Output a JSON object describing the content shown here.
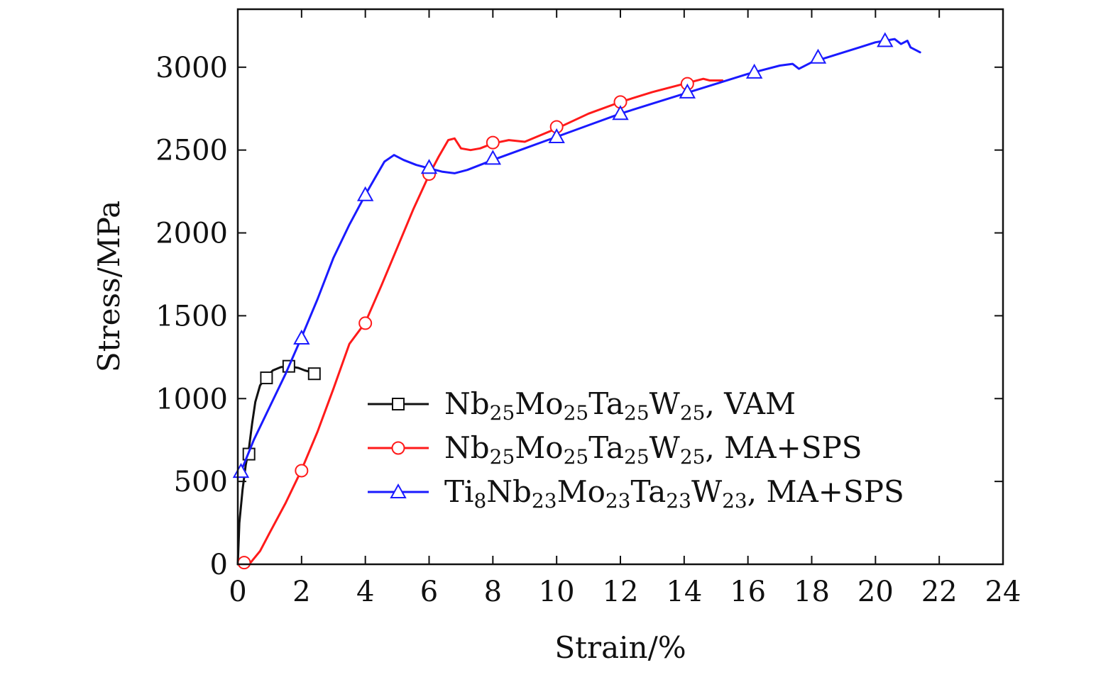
{
  "chart_data": {
    "type": "line",
    "title": "",
    "xlabel": "Strain/%",
    "ylabel": "Stress/MPa",
    "xlim": [
      0,
      24
    ],
    "ylim": [
      0,
      3350
    ],
    "xticks": [
      0,
      2,
      4,
      6,
      8,
      10,
      12,
      14,
      16,
      18,
      20,
      22,
      24
    ],
    "yticks": [
      0,
      500,
      1000,
      1500,
      2000,
      2500,
      3000
    ],
    "xtick_labels": [
      "0",
      "2",
      "4",
      "6",
      "8",
      "10",
      "12",
      "14",
      "16",
      "18",
      "20",
      "22",
      "24"
    ],
    "ytick_labels": [
      "0",
      "500",
      "1000",
      "1500",
      "2000",
      "2500",
      "3000"
    ],
    "grid": false,
    "legend_position": "center-right",
    "series": [
      {
        "name": "Nb25Mo25Ta25W25, VAM",
        "legend_parts": [
          {
            "text": "Nb",
            "sub": false
          },
          {
            "text": "25",
            "sub": true
          },
          {
            "text": "Mo",
            "sub": false
          },
          {
            "text": "25",
            "sub": true
          },
          {
            "text": "Ta",
            "sub": false
          },
          {
            "text": "25",
            "sub": true
          },
          {
            "text": "W",
            "sub": false
          },
          {
            "text": "25",
            "sub": true
          },
          {
            "text": ", VAM",
            "sub": false
          }
        ],
        "color": "#111111",
        "marker": "square",
        "x": [
          0,
          0.05,
          0.15,
          0.25,
          0.35,
          0.45,
          0.55,
          0.7,
          0.9,
          1.1,
          1.35,
          1.6,
          1.9,
          2.1,
          2.3,
          2.45
        ],
        "y": [
          0,
          250,
          450,
          600,
          700,
          850,
          980,
          1080,
          1130,
          1170,
          1190,
          1195,
          1185,
          1170,
          1160,
          1150
        ],
        "marker_x": [
          0.35,
          0.9,
          1.6,
          2.4
        ],
        "marker_y": [
          665,
          1125,
          1195,
          1150
        ]
      },
      {
        "name": "Nb25Mo25Ta25W25, MA+SPS",
        "legend_parts": [
          {
            "text": "Nb",
            "sub": false
          },
          {
            "text": "25",
            "sub": true
          },
          {
            "text": "Mo",
            "sub": false
          },
          {
            "text": "25",
            "sub": true
          },
          {
            "text": "Ta",
            "sub": false
          },
          {
            "text": "25",
            "sub": true
          },
          {
            "text": "W",
            "sub": false
          },
          {
            "text": "25",
            "sub": true
          },
          {
            "text": ", MA+SPS",
            "sub": false
          }
        ],
        "color": "#ff1a1a",
        "marker": "circle",
        "x": [
          0.2,
          0.4,
          0.7,
          1.0,
          1.5,
          2.0,
          2.5,
          3.0,
          3.5,
          4.0,
          4.5,
          5.0,
          5.5,
          6.0,
          6.3,
          6.6,
          6.8,
          7.0,
          7.3,
          7.6,
          8.0,
          8.5,
          9.0,
          9.5,
          10.0,
          11.0,
          12.0,
          13.0,
          14.0,
          14.6,
          14.8,
          15.2
        ],
        "y": [
          0,
          10,
          80,
          190,
          370,
          570,
          800,
          1060,
          1330,
          1460,
          1680,
          1910,
          2140,
          2350,
          2460,
          2560,
          2570,
          2510,
          2500,
          2510,
          2540,
          2560,
          2550,
          2590,
          2630,
          2720,
          2790,
          2850,
          2900,
          2930,
          2920,
          2920
        ],
        "marker_x": [
          0.2,
          2.0,
          4.0,
          6.0,
          8.0,
          10.0,
          12.0,
          14.1
        ],
        "marker_y": [
          10,
          565,
          1455,
          2355,
          2545,
          2640,
          2790,
          2900
        ]
      },
      {
        "name": "Ti8Nb23Mo23Ta23W23, MA+SPS",
        "legend_parts": [
          {
            "text": "Ti",
            "sub": false
          },
          {
            "text": "8",
            "sub": true
          },
          {
            "text": "Nb",
            "sub": false
          },
          {
            "text": "23",
            "sub": true
          },
          {
            "text": "Mo",
            "sub": false
          },
          {
            "text": "23",
            "sub": true
          },
          {
            "text": "Ta",
            "sub": false
          },
          {
            "text": "23",
            "sub": true
          },
          {
            "text": "W",
            "sub": false
          },
          {
            "text": "23",
            "sub": true
          },
          {
            "text": ", MA+SPS",
            "sub": false
          }
        ],
        "color": "#1a1aff",
        "marker": "triangle",
        "x": [
          0.1,
          0.5,
          1.0,
          1.5,
          2.0,
          2.5,
          3.0,
          3.5,
          4.0,
          4.3,
          4.6,
          4.9,
          5.2,
          5.6,
          6.0,
          6.4,
          6.8,
          7.2,
          8.0,
          9.0,
          10.0,
          11.0,
          12.0,
          13.0,
          14.0,
          15.0,
          16.0,
          17.0,
          17.4,
          17.6,
          18.0,
          18.5,
          19.0,
          19.5,
          20.0,
          20.3,
          20.6,
          20.8,
          21.0,
          21.1,
          21.3,
          21.4
        ],
        "y": [
          560,
          750,
          950,
          1150,
          1370,
          1600,
          1850,
          2050,
          2230,
          2330,
          2430,
          2470,
          2440,
          2410,
          2390,
          2370,
          2360,
          2380,
          2440,
          2510,
          2580,
          2650,
          2720,
          2780,
          2840,
          2900,
          2960,
          3010,
          3020,
          2990,
          3030,
          3060,
          3090,
          3120,
          3150,
          3160,
          3170,
          3140,
          3160,
          3120,
          3100,
          3090
        ],
        "marker_x": [
          0.1,
          2.0,
          4.0,
          6.0,
          8.0,
          10.0,
          12.0,
          14.1,
          16.2,
          18.2,
          20.3
        ],
        "marker_y": [
          560,
          1365,
          2230,
          2395,
          2450,
          2580,
          2720,
          2850,
          2970,
          3060,
          3160
        ]
      }
    ]
  }
}
